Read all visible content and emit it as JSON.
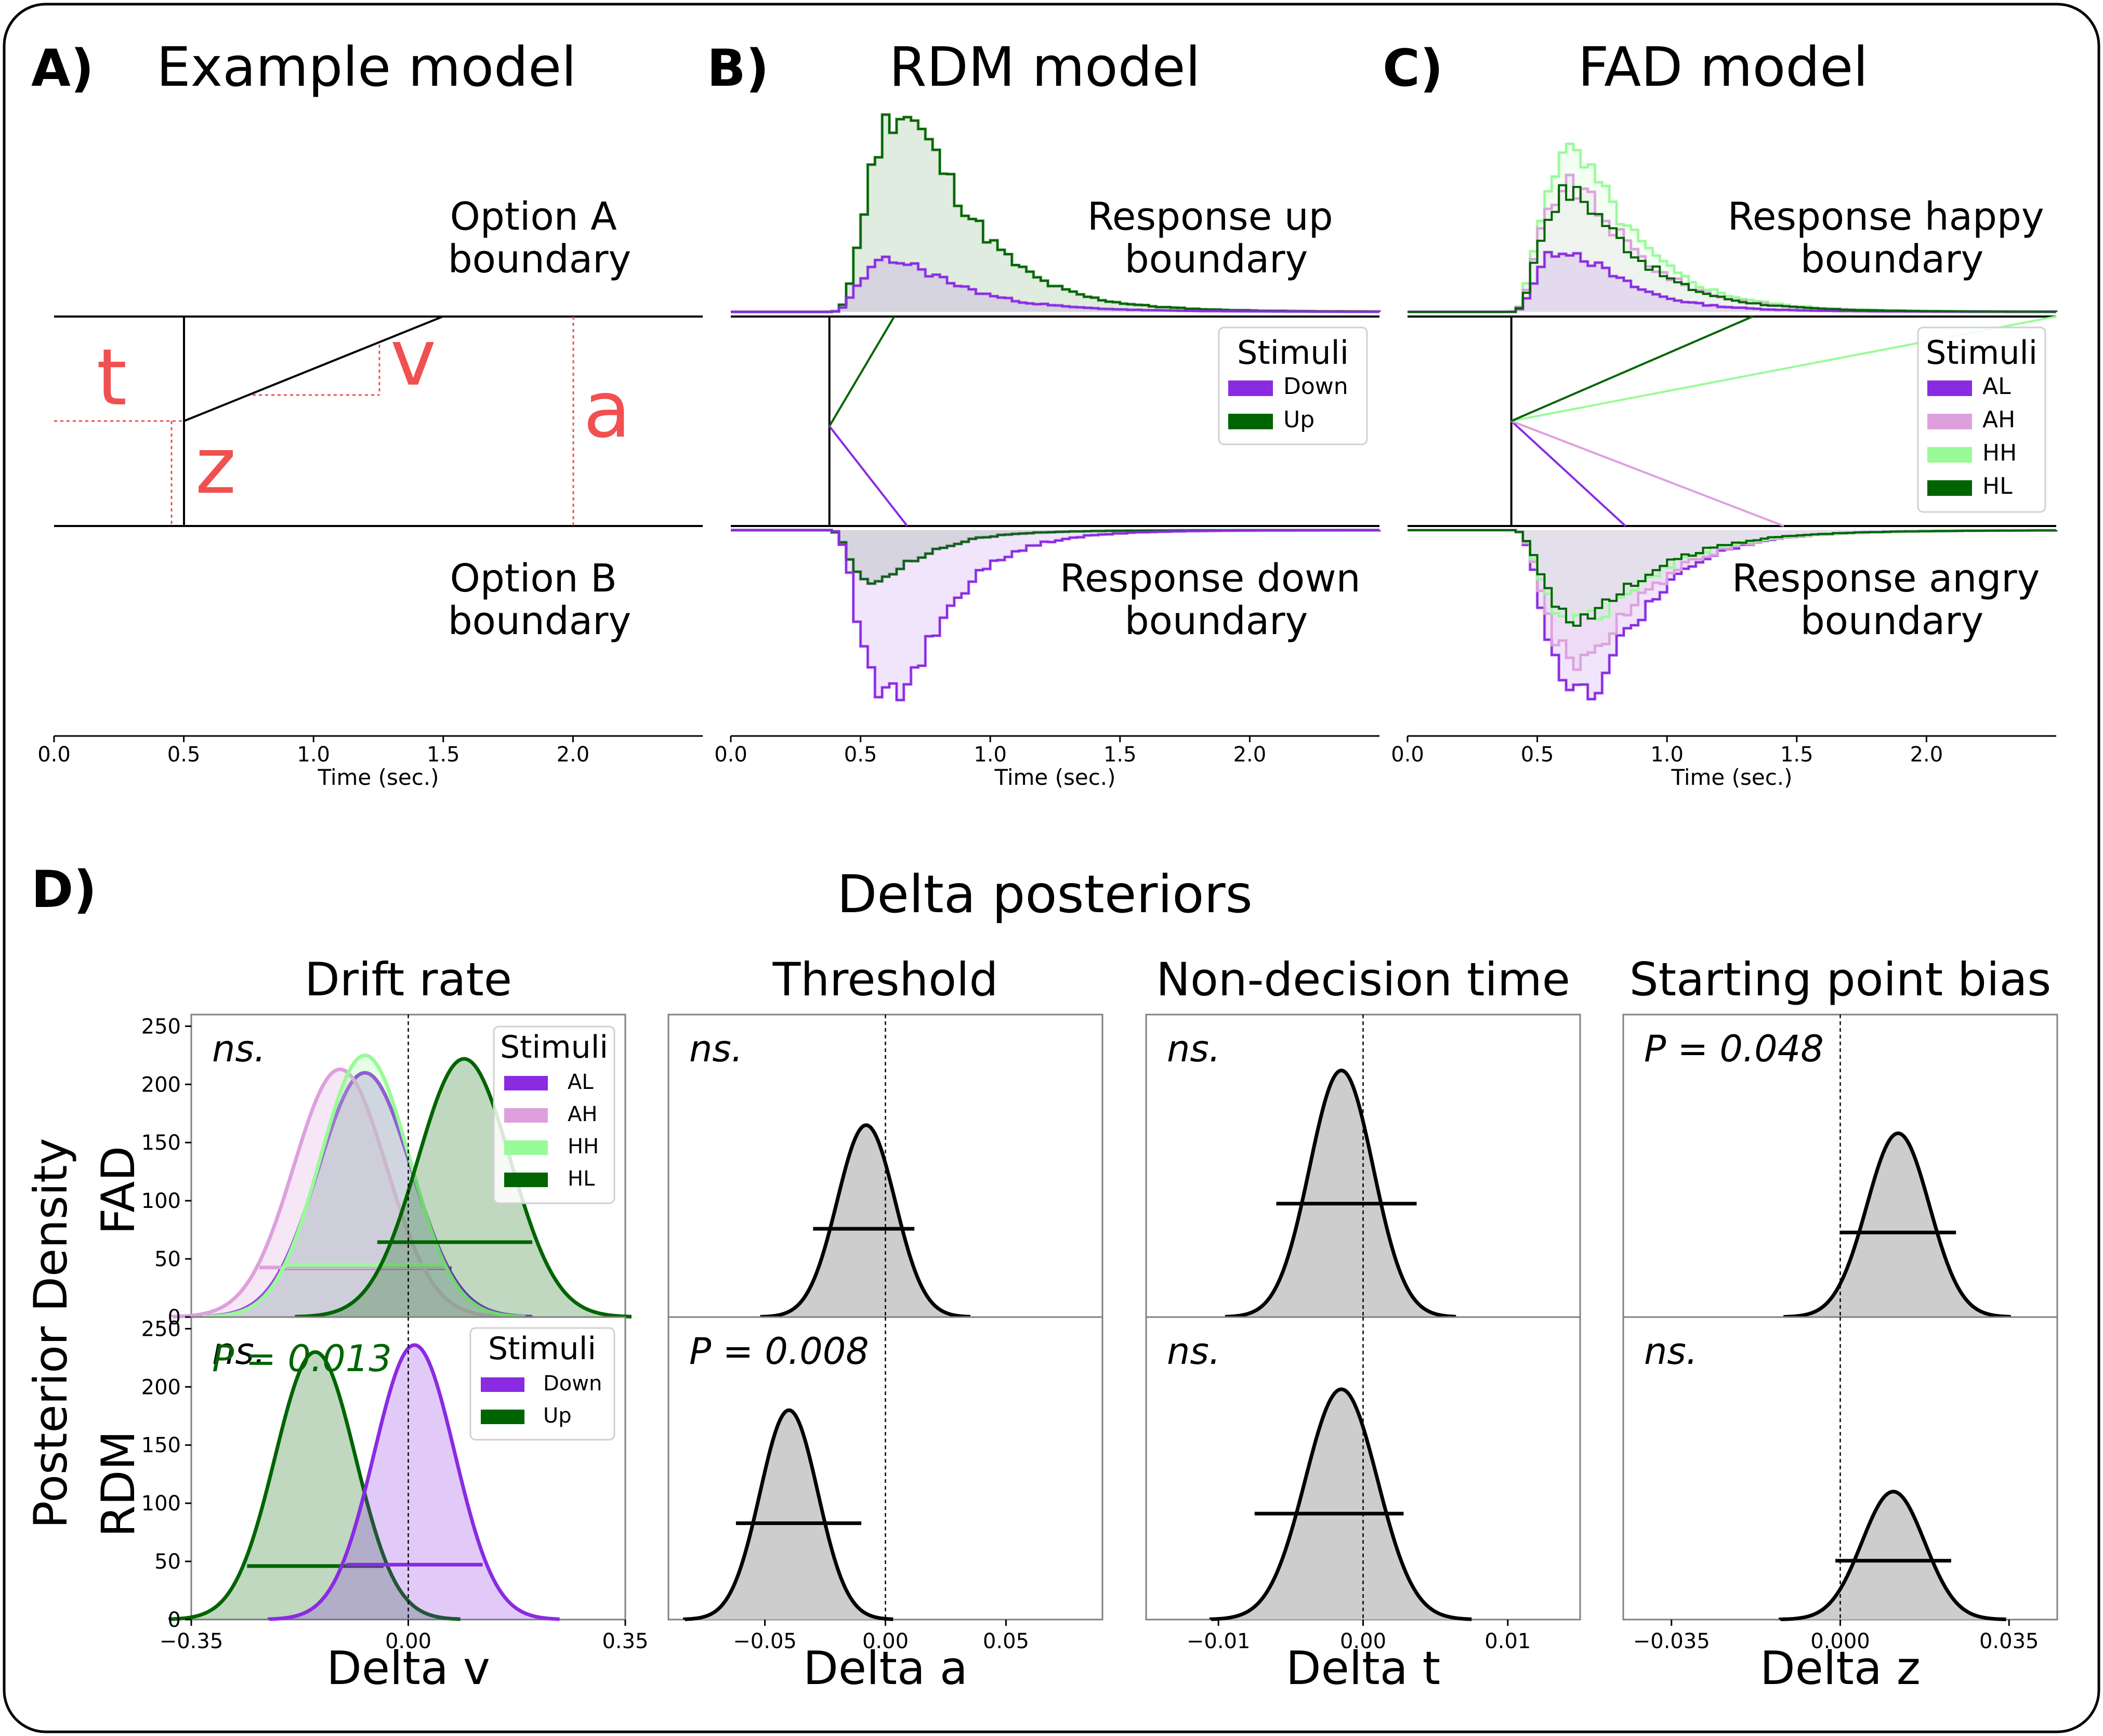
{
  "panels": {
    "A": {
      "label": "A)",
      "title": "Example model",
      "upper_boundary": [
        "Option A",
        "boundary"
      ],
      "lower_boundary": [
        "Option B",
        "boundary"
      ],
      "param_letters": {
        "t": "t",
        "v": "v",
        "a": "a",
        "z": "z"
      }
    },
    "B": {
      "label": "B)",
      "title": "RDM model",
      "upper_boundary": [
        "Response up",
        "boundary"
      ],
      "lower_boundary": [
        "Response down",
        "boundary"
      ]
    },
    "C": {
      "label": "C)",
      "title": "FAD model",
      "upper_boundary": [
        "Response happy",
        "boundary"
      ],
      "lower_boundary": [
        "Response angry",
        "boundary"
      ]
    },
    "D": {
      "label": "D)",
      "title": "Delta posteriors",
      "ylabel": "Posterior Density",
      "row_labels": [
        "FAD",
        "RDM"
      ],
      "column_titles": [
        "Drift rate",
        "Threshold",
        "Non-decision time",
        "Starting point bias"
      ],
      "xlabels": [
        "Delta v",
        "Delta a",
        "Delta t",
        "Delta z"
      ]
    }
  },
  "time_axis": {
    "xlabel": "Time (sec.)",
    "ticks": [
      "0.0",
      "0.5",
      "1.0",
      "1.5",
      "2.0"
    ]
  },
  "legends": {
    "stimuli_title": "Stimuli",
    "rdm": [
      {
        "name": "Down",
        "color": "#8a2be2"
      },
      {
        "name": "Up",
        "color": "#006400"
      }
    ],
    "fad": [
      {
        "name": "AL",
        "color": "#8a2be2"
      },
      {
        "name": "AH",
        "color": "#dda0dd"
      },
      {
        "name": "HH",
        "color": "#98fb98"
      },
      {
        "name": "HL",
        "color": "#006400"
      }
    ]
  },
  "density_yticks": [
    "0",
    "50",
    "100",
    "150",
    "200",
    "250"
  ],
  "annotations": {
    "fad": [
      "ns.",
      "ns.",
      "ns.",
      "P = 0.048"
    ],
    "rdm": [
      "ns.",
      "P = 0.008",
      "ns.",
      "ns."
    ],
    "rdm_drift_green": "P = 0.013"
  },
  "colors": {
    "purple": "#8a2be2",
    "plum": "#dda0dd",
    "palegreen": "#98fb98",
    "darkgreen": "#006400",
    "red": "#f05050",
    "gray_fill": "#c8c8c8"
  },
  "chart_data": [
    {
      "type": "line",
      "panel": "A",
      "description_free": true,
      "x_range": [
        0,
        2.5
      ],
      "non_decision_time": 0.5,
      "starting_point": 0.5,
      "drift_line": {
        "x": [
          0.5,
          1.5
        ],
        "y": [
          0.5,
          1.0
        ]
      },
      "boundary_separation_marker_x": 2.0
    },
    {
      "type": "line",
      "panel": "B",
      "x_range": [
        0,
        2.5
      ],
      "non_decision_time": 0.38,
      "series": [
        {
          "name": "Up",
          "color": "#006400",
          "drift_end": [
            0.63,
            1.0
          ],
          "upper_peak": {
            "x": 0.65,
            "y": 1.0
          },
          "lower_peak": {
            "x": 0.5,
            "y": 0.15
          }
        },
        {
          "name": "Down",
          "color": "#8a2be2",
          "drift_end": [
            0.68,
            0.0
          ],
          "upper_peak": {
            "x": 0.6,
            "y": 0.27
          },
          "lower_peak": {
            "x": 0.6,
            "y": 0.85
          }
        }
      ]
    },
    {
      "type": "line",
      "panel": "C",
      "x_range": [
        0,
        2.5
      ],
      "non_decision_time": 0.4,
      "series": [
        {
          "name": "AL",
          "color": "#8a2be2",
          "drift_end": [
            0.84,
            0.0
          ]
        },
        {
          "name": "AH",
          "color": "#dda0dd",
          "drift_end": [
            1.45,
            0.0
          ]
        },
        {
          "name": "HH",
          "color": "#98fb98",
          "drift_end": [
            2.5,
            1.0
          ]
        },
        {
          "name": "HL",
          "color": "#006400",
          "drift_end": [
            1.33,
            1.0
          ]
        }
      ]
    },
    {
      "type": "area",
      "panel": "D-FAD-drift",
      "xlim": [
        -0.35,
        0.35
      ],
      "ylim": [
        0,
        260
      ],
      "xticks": [
        "-0.35",
        "0.00",
        "0.35"
      ],
      "series": [
        {
          "name": "AL",
          "color": "#8a2be2",
          "mean": -0.07,
          "sd": 0.075,
          "peak": 210,
          "hdi": [
            -0.21,
            0.07
          ]
        },
        {
          "name": "AH",
          "color": "#dda0dd",
          "mean": -0.11,
          "sd": 0.075,
          "peak": 213,
          "hdi": [
            -0.24,
            0.06
          ]
        },
        {
          "name": "HH",
          "color": "#98fb98",
          "mean": -0.07,
          "sd": 0.072,
          "peak": 225,
          "hdi": [
            -0.2,
            0.06
          ]
        },
        {
          "name": "HL",
          "color": "#006400",
          "mean": 0.09,
          "sd": 0.075,
          "peak": 222,
          "hdi": [
            -0.05,
            0.2
          ]
        }
      ]
    },
    {
      "type": "area",
      "panel": "D-RDM-drift",
      "xlim": [
        -0.35,
        0.35
      ],
      "ylim": [
        0,
        260
      ],
      "xticks": [
        "-0.35",
        "0.00",
        "0.35"
      ],
      "series": [
        {
          "name": "Up",
          "color": "#006400",
          "mean": -0.15,
          "sd": 0.065,
          "peak": 230,
          "hdi": [
            -0.26,
            -0.04
          ]
        },
        {
          "name": "Down",
          "color": "#8a2be2",
          "mean": 0.01,
          "sd": 0.065,
          "peak": 236,
          "hdi": [
            -0.1,
            0.12
          ]
        }
      ]
    },
    {
      "type": "area",
      "panel": "D-FAD-threshold",
      "xlim": [
        -0.09,
        0.09
      ],
      "ylim": [
        0,
        260
      ],
      "xticks": [
        "-0.05",
        "0.00",
        "0.05"
      ],
      "series": [
        {
          "name": "",
          "color": "#000000",
          "mean": -0.008,
          "sd": 0.012,
          "peak": 165,
          "hdi": [
            -0.03,
            0.012
          ]
        }
      ]
    },
    {
      "type": "area",
      "panel": "D-RDM-threshold",
      "xlim": [
        -0.09,
        0.09
      ],
      "ylim": [
        0,
        260
      ],
      "xticks": [
        "-0.05",
        "0.00",
        "0.05"
      ],
      "series": [
        {
          "name": "",
          "color": "#000000",
          "mean": -0.04,
          "sd": 0.012,
          "peak": 180,
          "hdi": [
            -0.062,
            -0.01
          ]
        }
      ]
    },
    {
      "type": "area",
      "panel": "D-FAD-nondecision",
      "xlim": [
        -0.015,
        0.015
      ],
      "ylim": [
        0,
        260
      ],
      "xticks": [
        "-0.01",
        "0.00",
        "0.01"
      ],
      "series": [
        {
          "name": "",
          "color": "#000000",
          "mean": -0.0015,
          "sd": 0.0022,
          "peak": 212,
          "hdi": [
            -0.006,
            0.0037
          ]
        }
      ]
    },
    {
      "type": "area",
      "panel": "D-RDM-nondecision",
      "xlim": [
        -0.015,
        0.015
      ],
      "ylim": [
        0,
        260
      ],
      "xticks": [
        "-0.01",
        "0.00",
        "0.01"
      ],
      "series": [
        {
          "name": "",
          "color": "#000000",
          "mean": -0.0015,
          "sd": 0.0025,
          "peak": 198,
          "hdi": [
            -0.0075,
            0.0028
          ]
        }
      ]
    },
    {
      "type": "area",
      "panel": "D-FAD-startbias",
      "xlim": [
        -0.045,
        0.045
      ],
      "ylim": [
        0,
        260
      ],
      "xticks": [
        "-0.035",
        "0.000",
        "0.035"
      ],
      "series": [
        {
          "name": "",
          "color": "#000000",
          "mean": 0.012,
          "sd": 0.0065,
          "peak": 158,
          "hdi": [
            0.0,
            0.024
          ]
        }
      ]
    },
    {
      "type": "area",
      "panel": "D-RDM-startbias",
      "xlim": [
        -0.045,
        0.045
      ],
      "ylim": [
        0,
        260
      ],
      "xticks": [
        "-0.035",
        "0.000",
        "0.035"
      ],
      "series": [
        {
          "name": "",
          "color": "#000000",
          "mean": 0.011,
          "sd": 0.0065,
          "peak": 110,
          "hdi": [
            -0.001,
            0.023
          ]
        }
      ]
    }
  ]
}
